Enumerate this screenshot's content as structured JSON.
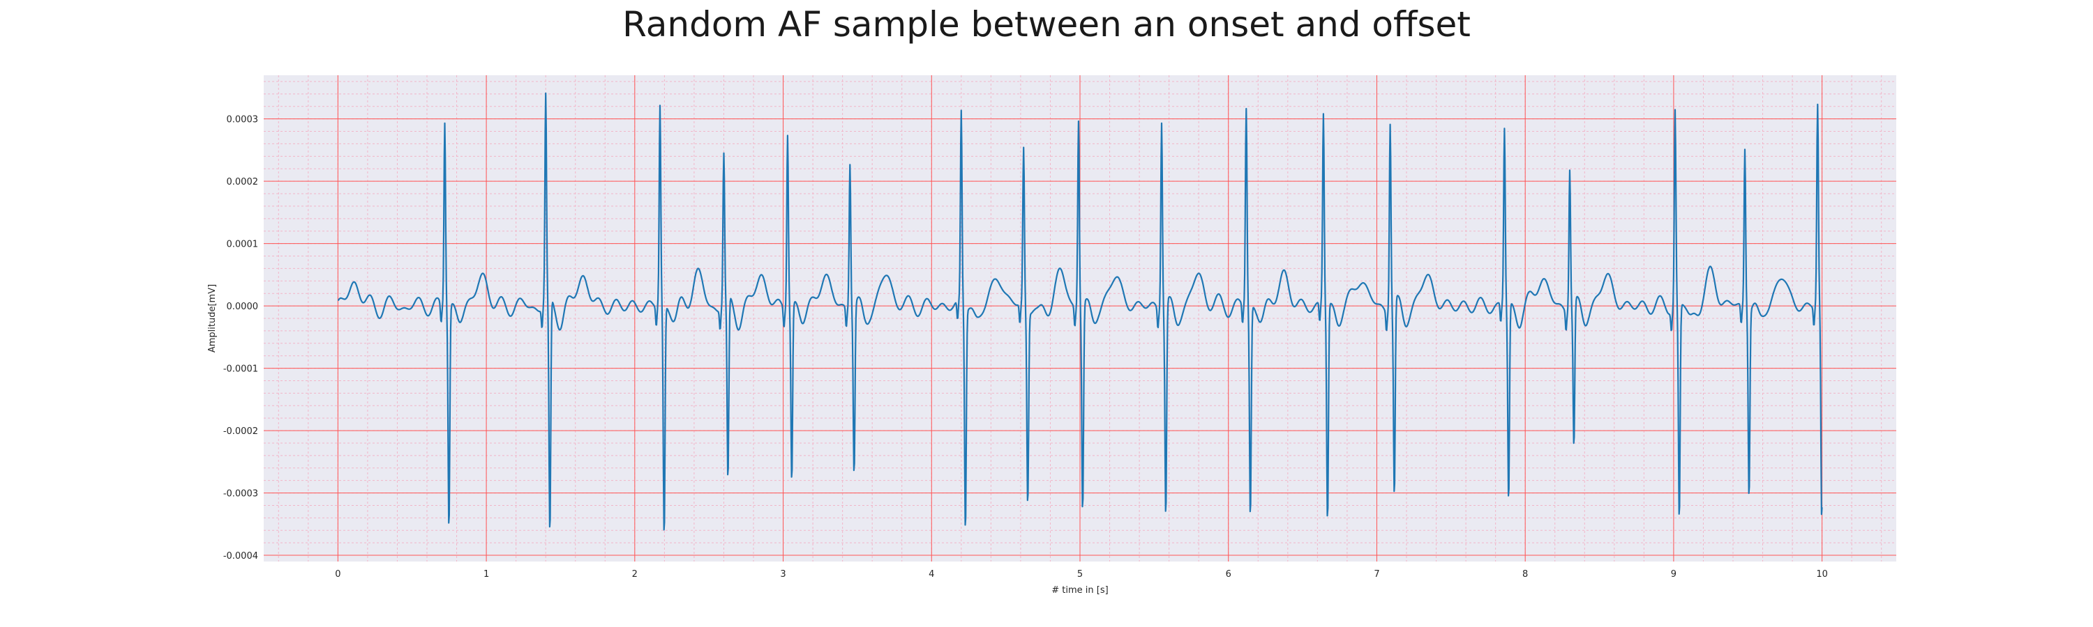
{
  "chart_data": {
    "type": "line",
    "title": "Random AF sample between an onset and offset",
    "xlabel": "# time in [s]",
    "ylabel": "Amplitude[mV]",
    "xlim": [
      -0.5,
      10.5
    ],
    "ylim": [
      -0.00041,
      0.00037
    ],
    "xticks": [
      0,
      1,
      2,
      3,
      4,
      5,
      6,
      7,
      8,
      9,
      10
    ],
    "yticks": [
      -0.0004,
      -0.0003,
      -0.0002,
      -0.0001,
      0.0,
      0.0001,
      0.0002,
      0.0003
    ],
    "ytick_labels": [
      "-0.0004",
      "-0.0003",
      "-0.0002",
      "-0.0001",
      "0.0000",
      "0.0001",
      "0.0002",
      "0.0003"
    ],
    "grid": true,
    "minor_grid": true,
    "background_color": "#eaeaf2",
    "major_grid_color": "#ff5555",
    "minor_grid_color": "#f2b5c8",
    "series": [
      {
        "color": "#1f77b4",
        "beats": [
          {
            "t": 0.72,
            "peak": 0.0003,
            "trough": -0.000355
          },
          {
            "t": 1.4,
            "peak": 0.000333,
            "trough": -0.000382
          },
          {
            "t": 2.17,
            "peak": 0.000322,
            "trough": -0.000372
          },
          {
            "t": 2.6,
            "peak": 0.000243,
            "trough": -0.000295
          },
          {
            "t": 3.03,
            "peak": 0.000283,
            "trough": -0.000283
          },
          {
            "t": 3.45,
            "peak": 0.000238,
            "trough": -0.000268
          },
          {
            "t": 4.2,
            "peak": 0.00031,
            "trough": -0.000355
          },
          {
            "t": 4.62,
            "peak": 0.000255,
            "trough": -0.00031
          },
          {
            "t": 4.99,
            "peak": 0.000305,
            "trough": -0.00033
          },
          {
            "t": 5.55,
            "peak": 0.000305,
            "trough": -0.00034
          },
          {
            "t": 6.12,
            "peak": 0.000318,
            "trough": -0.00034
          },
          {
            "t": 6.64,
            "peak": 0.000308,
            "trough": -0.000347
          },
          {
            "t": 7.09,
            "peak": 0.000302,
            "trough": -0.000312
          },
          {
            "t": 7.86,
            "peak": 0.000283,
            "trough": -0.000318
          },
          {
            "t": 8.3,
            "peak": 0.000228,
            "trough": -0.000232
          },
          {
            "t": 9.01,
            "peak": 0.000315,
            "trough": -0.000348
          },
          {
            "t": 9.48,
            "peak": 0.000258,
            "trough": -0.000298
          },
          {
            "t": 9.97,
            "peak": 0.00032,
            "trough": -0.000352
          }
        ]
      }
    ]
  }
}
